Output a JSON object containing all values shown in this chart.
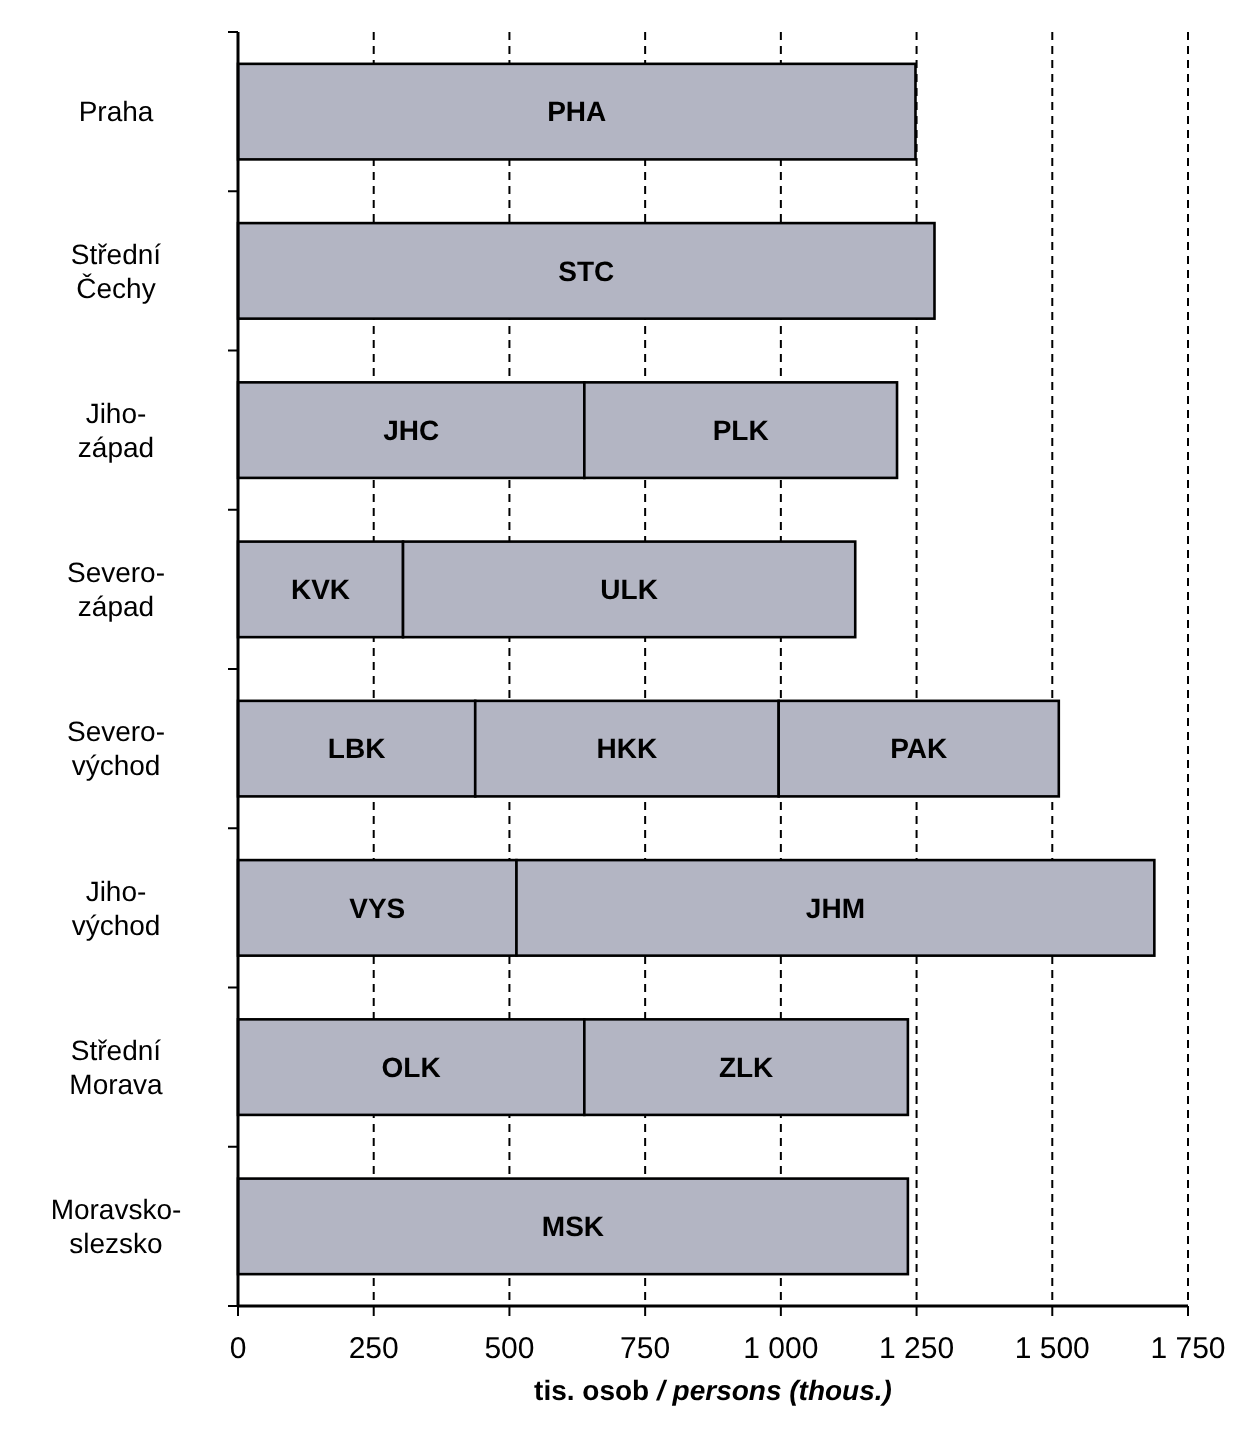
{
  "chart_data": {
    "type": "bar",
    "orientation": "horizontal",
    "stacked": true,
    "categories": [
      "Praha",
      "Střední Čechy",
      "Jiho-západ",
      "Severo-západ",
      "Severo-východ",
      "Jiho-východ",
      "Střední Morava",
      "Moravsko-slezsko"
    ],
    "series": [
      {
        "color": "#b3b5c3",
        "values": [
          1248,
          1283,
          638,
          304,
          437,
          513,
          638,
          1234
        ],
        "value_labels": [
          "PHA",
          "STC",
          "JHC",
          "KVK",
          "LBK",
          "VYS",
          "OLK",
          "MSK"
        ]
      },
      {
        "color": "#b3b5c3",
        "values": [
          null,
          null,
          576,
          833,
          559,
          1175,
          596,
          null
        ],
        "value_labels": [
          null,
          null,
          "PLK",
          "ULK",
          "HKK",
          "JHM",
          "ZLK",
          null
        ]
      },
      {
        "color": "#b3b5c3",
        "values": [
          null,
          null,
          null,
          null,
          516,
          null,
          null,
          null
        ],
        "value_labels": [
          null,
          null,
          null,
          null,
          "PAK",
          null,
          null,
          null
        ]
      }
    ],
    "xlim": [
      0,
      1750
    ],
    "xticks": [
      0,
      250,
      500,
      750,
      {
        "value": 1000,
        "label": "1 000"
      },
      {
        "value": 1250,
        "label": "1 250"
      },
      {
        "value": 1500,
        "label": "1 500"
      },
      {
        "value": 1750,
        "label": "1 750"
      }
    ],
    "xlabel": "tis. osob / persons (thous.)",
    "grid": "x"
  }
}
